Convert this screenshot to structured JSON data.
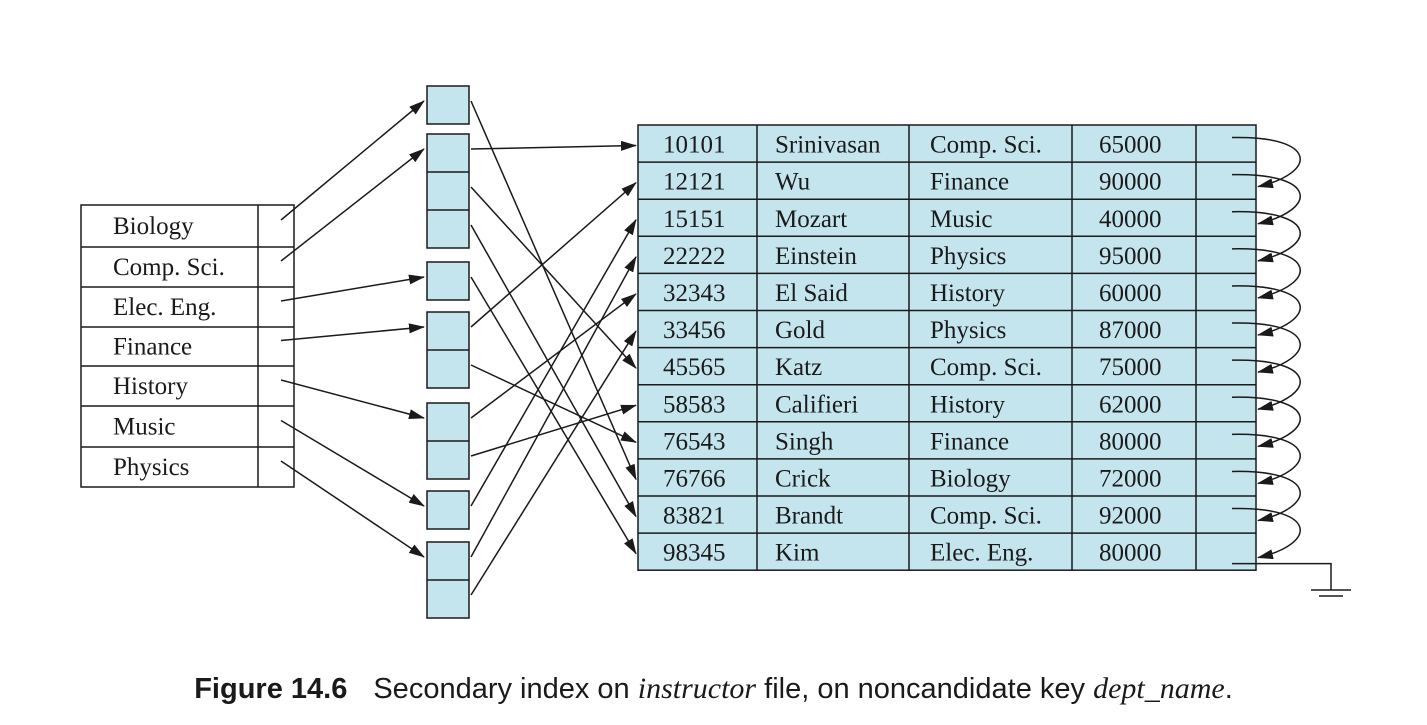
{
  "colors": {
    "cell_fill": "#c5e5ee",
    "line": "#1a1a1a",
    "background": "#ffffff"
  },
  "index": {
    "keys": [
      "Biology",
      "Comp. Sci.",
      "Elec. Eng.",
      "Finance",
      "History",
      "Music",
      "Physics"
    ]
  },
  "file": {
    "records": [
      {
        "id": "10101",
        "name": "Srinivasan",
        "dept": "Comp. Sci.",
        "salary": "65000"
      },
      {
        "id": "12121",
        "name": "Wu",
        "dept": "Finance",
        "salary": "90000"
      },
      {
        "id": "15151",
        "name": "Mozart",
        "dept": "Music",
        "salary": "40000"
      },
      {
        "id": "22222",
        "name": "Einstein",
        "dept": "Physics",
        "salary": "95000"
      },
      {
        "id": "32343",
        "name": "El Said",
        "dept": "History",
        "salary": "60000"
      },
      {
        "id": "33456",
        "name": "Gold",
        "dept": "Physics",
        "salary": "87000"
      },
      {
        "id": "45565",
        "name": "Katz",
        "dept": "Comp. Sci.",
        "salary": "75000"
      },
      {
        "id": "58583",
        "name": "Califieri",
        "dept": "History",
        "salary": "62000"
      },
      {
        "id": "76543",
        "name": "Singh",
        "dept": "Finance",
        "salary": "80000"
      },
      {
        "id": "76766",
        "name": "Crick",
        "dept": "Biology",
        "salary": "72000"
      },
      {
        "id": "83821",
        "name": "Brandt",
        "dept": "Comp. Sci.",
        "salary": "92000"
      },
      {
        "id": "98345",
        "name": "Kim",
        "dept": "Elec. Eng.",
        "salary": "80000"
      }
    ]
  },
  "buckets": [
    {
      "key": "Biology",
      "records": [
        "76766"
      ]
    },
    {
      "key": "Comp. Sci.",
      "records": [
        "10101",
        "45565",
        "83821"
      ]
    },
    {
      "key": "Elec. Eng.",
      "records": [
        "98345"
      ]
    },
    {
      "key": "Finance",
      "records": [
        "12121",
        "76543"
      ]
    },
    {
      "key": "History",
      "records": [
        "32343",
        "58583"
      ]
    },
    {
      "key": "Music",
      "records": [
        "15151"
      ]
    },
    {
      "key": "Physics",
      "records": [
        "22222",
        "33456"
      ]
    }
  ],
  "caption": {
    "label": "Figure 14.6",
    "text_1": "Secondary index on ",
    "italic_1": "instructor",
    "text_2": " file, on noncandidate key ",
    "italic_2": "dept_name",
    "text_3": "."
  }
}
